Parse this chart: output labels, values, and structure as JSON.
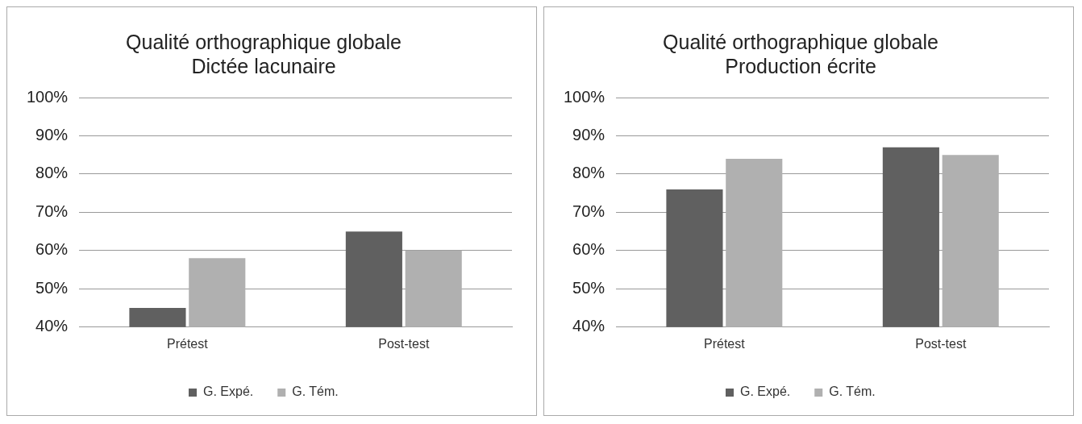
{
  "chart_data": [
    {
      "type": "bar",
      "title": "Qualité orthographique globale\nDictée lacunaire",
      "categories": [
        "Prétest",
        "Post-test"
      ],
      "series": [
        {
          "name": "G. Expé.",
          "color": "#606060",
          "values": [
            45,
            65
          ]
        },
        {
          "name": "G. Tém.",
          "color": "#b0b0b0",
          "values": [
            58,
            60
          ]
        }
      ],
      "ylim": [
        40,
        100
      ],
      "yticks": [
        {
          "value": 40,
          "label": "40%"
        },
        {
          "value": 50,
          "label": "50%"
        },
        {
          "value": 60,
          "label": "60%"
        },
        {
          "value": 70,
          "label": "70%"
        },
        {
          "value": 80,
          "label": "80%"
        },
        {
          "value": 90,
          "label": "90%"
        },
        {
          "value": 100,
          "label": "100%"
        }
      ],
      "grid": "y",
      "legend": "bottom"
    },
    {
      "type": "bar",
      "title": "Qualité orthographique globale\nProduction écrite",
      "categories": [
        "Prétest",
        "Post-test"
      ],
      "series": [
        {
          "name": "G. Expé.",
          "color": "#606060",
          "values": [
            76,
            87
          ]
        },
        {
          "name": "G. Tém.",
          "color": "#b0b0b0",
          "values": [
            84,
            85
          ]
        }
      ],
      "ylim": [
        40,
        100
      ],
      "yticks": [
        {
          "value": 40,
          "label": "40%"
        },
        {
          "value": 50,
          "label": "50%"
        },
        {
          "value": 60,
          "label": "60%"
        },
        {
          "value": 70,
          "label": "70%"
        },
        {
          "value": 80,
          "label": "80%"
        },
        {
          "value": 90,
          "label": "90%"
        },
        {
          "value": 100,
          "label": "100%"
        }
      ],
      "grid": "y",
      "legend": "bottom"
    }
  ]
}
